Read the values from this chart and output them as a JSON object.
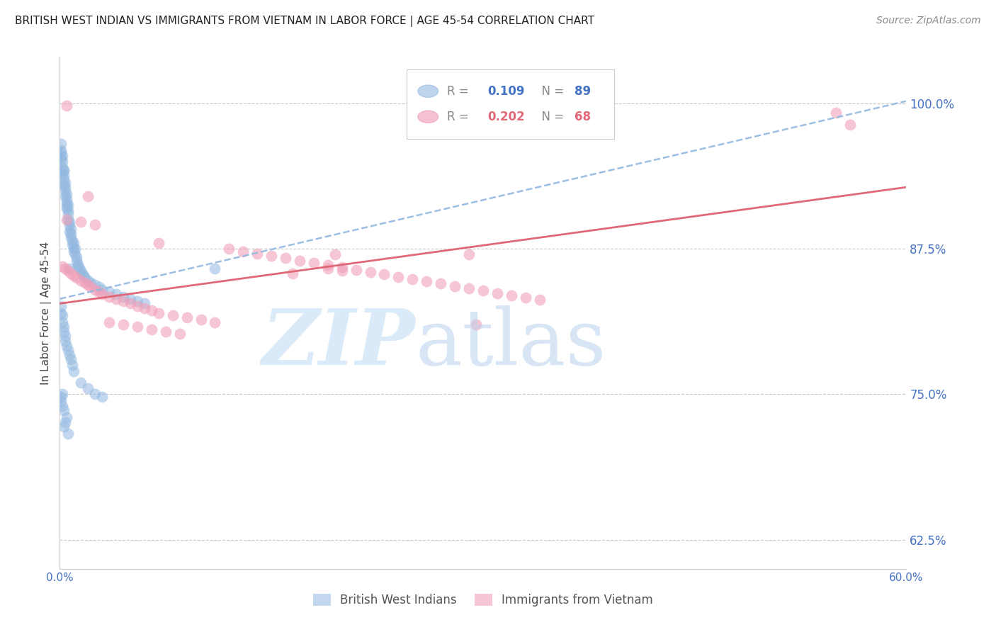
{
  "title": "BRITISH WEST INDIAN VS IMMIGRANTS FROM VIETNAM IN LABOR FORCE | AGE 45-54 CORRELATION CHART",
  "source": "Source: ZipAtlas.com",
  "ylabel": "In Labor Force | Age 45-54",
  "xlim": [
    0.0,
    0.6
  ],
  "ylim": [
    0.6,
    1.04
  ],
  "xticks": [
    0.0,
    0.1,
    0.2,
    0.3,
    0.4,
    0.5,
    0.6
  ],
  "xticklabels": [
    "0.0%",
    "",
    "",
    "",
    "",
    "",
    "60.0%"
  ],
  "yticks": [
    0.625,
    0.75,
    0.875,
    1.0
  ],
  "yticklabels": [
    "62.5%",
    "75.0%",
    "87.5%",
    "100.0%"
  ],
  "ytick_color": "#4472C4",
  "xtick_color": "#4472C4",
  "grid_color": "#c8c8c8",
  "background_color": "#ffffff",
  "blue_color": "#92b8e0",
  "pink_color": "#f0a0b8",
  "blue_line_color": "#92b8e0",
  "pink_line_color": "#e06878",
  "legend_label1": "British West Indians",
  "legend_label2": "Immigrants from Vietnam",
  "blue_trend_x": [
    0.0,
    0.6
  ],
  "blue_trend_y": [
    0.832,
    1.002
  ],
  "pink_trend_x": [
    0.0,
    0.6
  ],
  "pink_trend_y": [
    0.828,
    0.928
  ],
  "blue_x": [
    0.001,
    0.001,
    0.001,
    0.001,
    0.001,
    0.002,
    0.002,
    0.002,
    0.002,
    0.003,
    0.003,
    0.003,
    0.003,
    0.003,
    0.004,
    0.004,
    0.004,
    0.004,
    0.005,
    0.005,
    0.005,
    0.005,
    0.005,
    0.006,
    0.006,
    0.006,
    0.006,
    0.007,
    0.007,
    0.007,
    0.008,
    0.008,
    0.008,
    0.009,
    0.009,
    0.01,
    0.01,
    0.01,
    0.011,
    0.011,
    0.012,
    0.012,
    0.013,
    0.013,
    0.014,
    0.015,
    0.016,
    0.017,
    0.018,
    0.02,
    0.022,
    0.025,
    0.028,
    0.03,
    0.035,
    0.04,
    0.045,
    0.05,
    0.055,
    0.06,
    0.001,
    0.001,
    0.002,
    0.002,
    0.003,
    0.003,
    0.004,
    0.004,
    0.005,
    0.006,
    0.007,
    0.008,
    0.009,
    0.01,
    0.015,
    0.02,
    0.025,
    0.03,
    0.007,
    0.11,
    0.005,
    0.004,
    0.003,
    0.006,
    0.002,
    0.001,
    0.001,
    0.002,
    0.003
  ],
  "blue_y": [
    0.96,
    0.955,
    0.952,
    0.958,
    0.965,
    0.95,
    0.945,
    0.94,
    0.955,
    0.942,
    0.938,
    0.935,
    0.93,
    0.943,
    0.928,
    0.925,
    0.92,
    0.932,
    0.918,
    0.915,
    0.91,
    0.922,
    0.912,
    0.908,
    0.905,
    0.9,
    0.913,
    0.898,
    0.895,
    0.89,
    0.888,
    0.885,
    0.892,
    0.882,
    0.879,
    0.876,
    0.873,
    0.88,
    0.87,
    0.875,
    0.868,
    0.865,
    0.862,
    0.86,
    0.858,
    0.856,
    0.854,
    0.852,
    0.85,
    0.848,
    0.846,
    0.844,
    0.842,
    0.84,
    0.838,
    0.836,
    0.834,
    0.832,
    0.83,
    0.828,
    0.826,
    0.82,
    0.818,
    0.812,
    0.808,
    0.804,
    0.8,
    0.796,
    0.792,
    0.788,
    0.784,
    0.78,
    0.775,
    0.77,
    0.76,
    0.755,
    0.75,
    0.748,
    0.858,
    0.858,
    0.73,
    0.726,
    0.722,
    0.716,
    0.75,
    0.748,
    0.744,
    0.74,
    0.736
  ],
  "pink_x": [
    0.002,
    0.004,
    0.006,
    0.008,
    0.01,
    0.012,
    0.015,
    0.018,
    0.02,
    0.022,
    0.025,
    0.028,
    0.03,
    0.035,
    0.04,
    0.045,
    0.05,
    0.055,
    0.06,
    0.065,
    0.07,
    0.08,
    0.09,
    0.1,
    0.11,
    0.12,
    0.13,
    0.14,
    0.15,
    0.16,
    0.17,
    0.18,
    0.19,
    0.2,
    0.21,
    0.22,
    0.23,
    0.24,
    0.25,
    0.26,
    0.27,
    0.28,
    0.29,
    0.3,
    0.31,
    0.32,
    0.33,
    0.34,
    0.55,
    0.56,
    0.005,
    0.015,
    0.025,
    0.035,
    0.045,
    0.055,
    0.065,
    0.075,
    0.085,
    0.19,
    0.2,
    0.29,
    0.295,
    0.195,
    0.005,
    0.02,
    0.07,
    0.165
  ],
  "pink_y": [
    0.86,
    0.858,
    0.856,
    0.854,
    0.852,
    0.85,
    0.848,
    0.846,
    0.844,
    0.842,
    0.84,
    0.838,
    0.836,
    0.834,
    0.832,
    0.83,
    0.828,
    0.826,
    0.824,
    0.822,
    0.82,
    0.818,
    0.816,
    0.814,
    0.812,
    0.875,
    0.873,
    0.871,
    0.869,
    0.867,
    0.865,
    0.863,
    0.861,
    0.859,
    0.857,
    0.855,
    0.853,
    0.851,
    0.849,
    0.847,
    0.845,
    0.843,
    0.841,
    0.839,
    0.837,
    0.835,
    0.833,
    0.831,
    0.992,
    0.982,
    0.9,
    0.898,
    0.896,
    0.812,
    0.81,
    0.808,
    0.806,
    0.804,
    0.802,
    0.858,
    0.856,
    0.87,
    0.81,
    0.87,
    0.998,
    0.92,
    0.88,
    0.854
  ]
}
